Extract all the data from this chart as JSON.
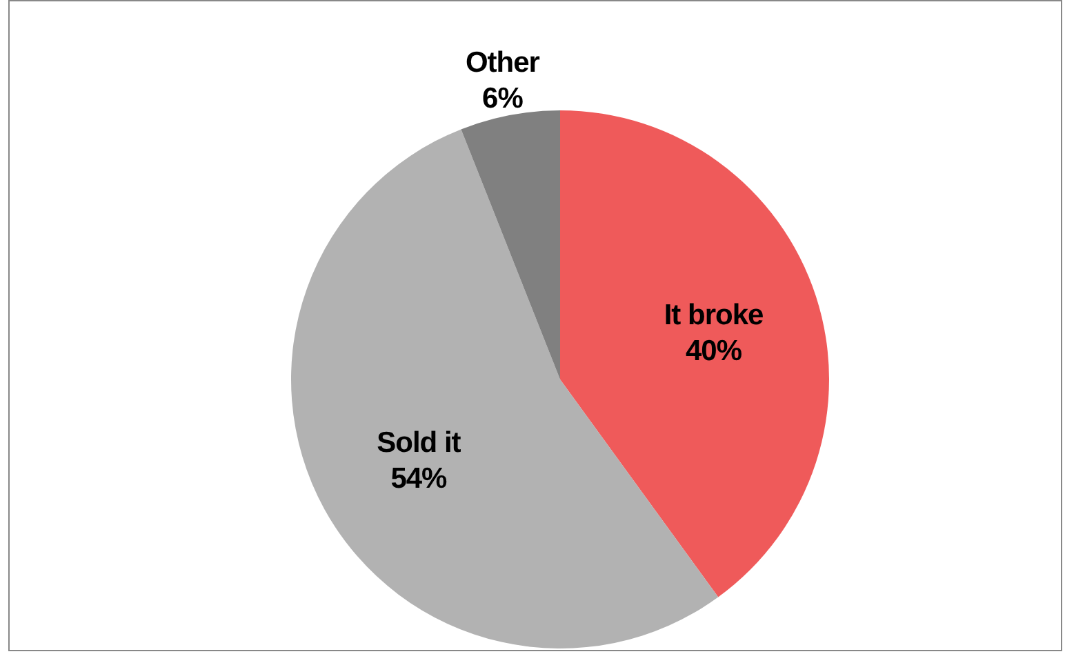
{
  "chart_data": {
    "type": "pie",
    "categories": [
      "It broke",
      "Sold it",
      "Other"
    ],
    "values": [
      40,
      54,
      6
    ],
    "colors": [
      "#ef5a5a",
      "#b2b2b2",
      "#808080"
    ],
    "value_labels": [
      "40%",
      "54%",
      "6%"
    ],
    "legend": false
  }
}
